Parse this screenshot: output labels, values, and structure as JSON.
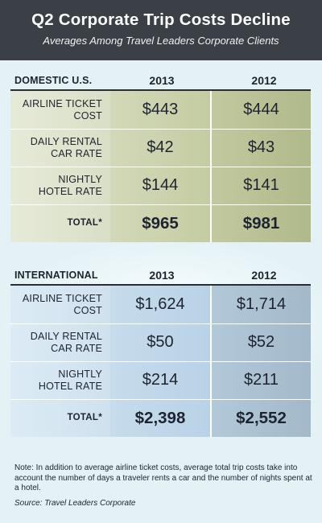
{
  "header": {
    "title": "Q2 Corporate Trip Costs Decline",
    "subtitle": "Averages Among Travel Leaders Corporate Clients"
  },
  "domestic": {
    "label": "DOMESTIC U.S.",
    "year1": "2013",
    "year2": "2012",
    "rows": [
      {
        "label_line1": "AIRLINE TICKET",
        "label_line2": "COST",
        "v1": "$443",
        "v2": "$444"
      },
      {
        "label_line1": "DAILY RENTAL",
        "label_line2": "CAR RATE",
        "v1": "$42",
        "v2": "$43"
      },
      {
        "label_line1": "NIGHTLY",
        "label_line2": "HOTEL RATE",
        "v1": "$144",
        "v2": "$141"
      }
    ],
    "total": {
      "label": "TOTAL*",
      "v1": "$965",
      "v2": "$981"
    }
  },
  "international": {
    "label": "INTERNATIONAL",
    "year1": "2013",
    "year2": "2012",
    "rows": [
      {
        "label_line1": "AIRLINE TICKET",
        "label_line2": "COST",
        "v1": "$1,624",
        "v2": "$1,714"
      },
      {
        "label_line1": "DAILY RENTAL",
        "label_line2": "CAR RATE",
        "v1": "$50",
        "v2": "$52"
      },
      {
        "label_line1": "NIGHTLY",
        "label_line2": "HOTEL RATE",
        "v1": "$214",
        "v2": "$211"
      }
    ],
    "total": {
      "label": "TOTAL*",
      "v1": "$2,398",
      "v2": "$2,552"
    }
  },
  "footer": {
    "note": "Note: In addition to average airline ticket costs, average total trip costs take into account the number of days a traveler rents a car and the number of nights spent at a hotel.",
    "source": "Source: Travel Leaders Corporate"
  },
  "colors": {
    "header_bg": "#3a4046",
    "background": "#e6f3f7",
    "domestic_cells": "#c4cca2",
    "international_cells": "#b9d2e6",
    "text": "#1d2330"
  }
}
